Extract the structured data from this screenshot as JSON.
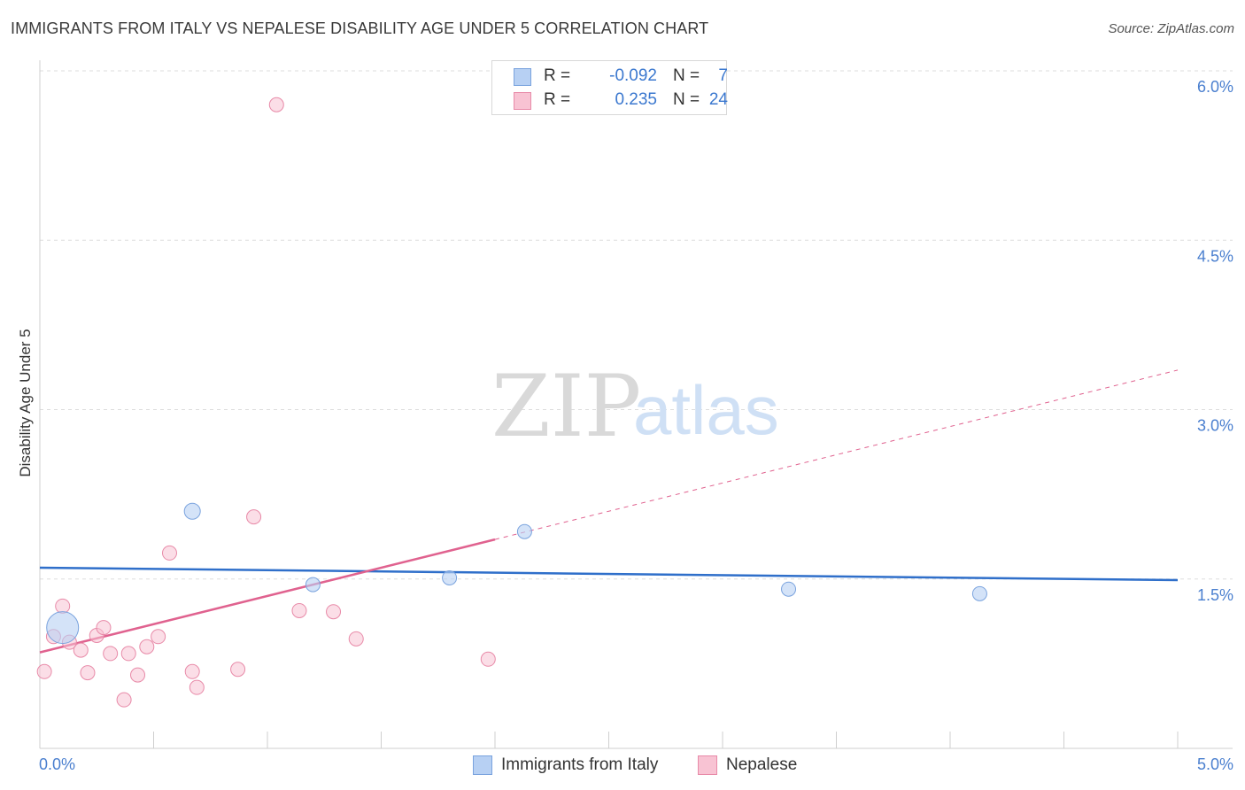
{
  "title": "IMMIGRANTS FROM ITALY VS NEPALESE DISABILITY AGE UNDER 5 CORRELATION CHART",
  "source": "Source: ZipAtlas.com",
  "watermark": {
    "zip": "ZIP",
    "atlas": "atlas"
  },
  "colors": {
    "italy_fill": "#b7d0f3",
    "italy_stroke": "#7aa3de",
    "italy_line": "#2f6fca",
    "nepal_fill": "#f8c3d3",
    "nepal_stroke": "#e88aa8",
    "nepal_line": "#e0628f",
    "grid": "#dddddd",
    "tick_label": "#4a7fcf"
  },
  "legend": {
    "italy": {
      "r_label": "R =",
      "r_value": "-0.092",
      "n_label": "N =",
      "n_value": "7"
    },
    "nepal": {
      "r_label": "R =",
      "r_value": "0.235",
      "n_label": "N =",
      "n_value": "24"
    }
  },
  "chart_data": {
    "type": "scatter",
    "title": "IMMIGRANTS FROM ITALY VS NEPALESE DISABILITY AGE UNDER 5 CORRELATION CHART",
    "xlabel": "",
    "ylabel": "Disability Age Under 5",
    "xlim": [
      0,
      5.0
    ],
    "ylim": [
      0,
      6.0
    ],
    "x_tick_labels": [
      "0.0%",
      "5.0%"
    ],
    "y_ticks": [
      1.5,
      3.0,
      4.5,
      6.0
    ],
    "y_tick_labels": [
      "1.5%",
      "3.0%",
      "4.5%",
      "6.0%"
    ],
    "grid": true,
    "legend_position": "bottom",
    "series": [
      {
        "name": "Immigrants from Italy",
        "points": [
          {
            "x": 0.1,
            "y": 1.07,
            "size": 18
          },
          {
            "x": 0.67,
            "y": 2.1,
            "size": 9
          },
          {
            "x": 1.2,
            "y": 1.45,
            "size": 8
          },
          {
            "x": 1.8,
            "y": 1.51,
            "size": 8
          },
          {
            "x": 2.13,
            "y": 1.92,
            "size": 8
          },
          {
            "x": 3.29,
            "y": 1.41,
            "size": 8
          },
          {
            "x": 4.13,
            "y": 1.37,
            "size": 8
          }
        ],
        "trend": {
          "x0": 0,
          "y0": 1.6,
          "x1": 5.0,
          "y1": 1.49,
          "solid_to": 5.0
        }
      },
      {
        "name": "Nepalese",
        "points": [
          {
            "x": 0.02,
            "y": 0.68
          },
          {
            "x": 0.06,
            "y": 0.99
          },
          {
            "x": 0.1,
            "y": 1.26
          },
          {
            "x": 0.13,
            "y": 0.94
          },
          {
            "x": 0.18,
            "y": 0.87
          },
          {
            "x": 0.21,
            "y": 0.67
          },
          {
            "x": 0.25,
            "y": 1.0
          },
          {
            "x": 0.28,
            "y": 1.07
          },
          {
            "x": 0.31,
            "y": 0.84
          },
          {
            "x": 0.37,
            "y": 0.43
          },
          {
            "x": 0.39,
            "y": 0.84
          },
          {
            "x": 0.43,
            "y": 0.65
          },
          {
            "x": 0.47,
            "y": 0.9
          },
          {
            "x": 0.52,
            "y": 0.99
          },
          {
            "x": 0.57,
            "y": 1.73
          },
          {
            "x": 0.67,
            "y": 0.68
          },
          {
            "x": 0.69,
            "y": 0.54
          },
          {
            "x": 0.87,
            "y": 0.7
          },
          {
            "x": 0.94,
            "y": 2.05
          },
          {
            "x": 1.04,
            "y": 5.7
          },
          {
            "x": 1.14,
            "y": 1.22
          },
          {
            "x": 1.29,
            "y": 1.21
          },
          {
            "x": 1.39,
            "y": 0.97
          },
          {
            "x": 1.97,
            "y": 0.79
          }
        ],
        "trend": {
          "x0": 0,
          "y0": 0.85,
          "x1": 5.0,
          "y1": 3.35,
          "solid_to": 2.0
        }
      }
    ]
  }
}
